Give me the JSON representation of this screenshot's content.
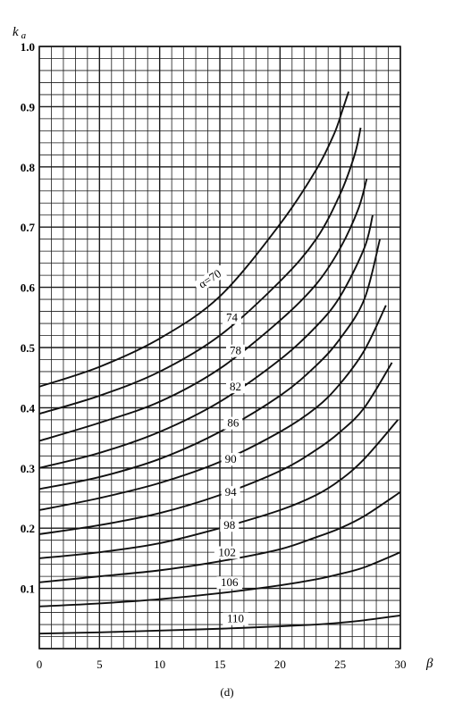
{
  "chart_data": {
    "type": "line",
    "title": "",
    "ylabel": {
      "symbol": "k",
      "subscript": "a"
    },
    "xlabel": "β",
    "caption": "(d)",
    "xlim": [
      0,
      30
    ],
    "ylim": [
      0,
      1.0
    ],
    "x_ticks": [
      "0",
      "5",
      "10",
      "15",
      "20",
      "25",
      "30"
    ],
    "y_ticks": [
      "0.1",
      "0.2",
      "0.3",
      "0.4",
      "0.5",
      "0.6",
      "0.7",
      "0.8",
      "0.9",
      "1.0"
    ],
    "grid": true,
    "line_color": "#111111",
    "grid_color": "#1a1a1a",
    "series": [
      {
        "name": "α=70",
        "label_x": 14.3,
        "label_y": 0.61,
        "label_angle": -33,
        "x": [
          0,
          5,
          10,
          15,
          20,
          23,
          24.5,
          25.2,
          25.7
        ],
        "y": [
          0.435,
          0.468,
          0.515,
          0.585,
          0.705,
          0.795,
          0.855,
          0.895,
          0.925
        ]
      },
      {
        "name": "74",
        "label_x": 16.0,
        "label_y": 0.545,
        "label_angle": 0,
        "x": [
          0,
          5,
          10,
          15,
          20,
          23,
          25,
          26.2,
          26.7
        ],
        "y": [
          0.39,
          0.42,
          0.46,
          0.52,
          0.61,
          0.68,
          0.755,
          0.82,
          0.865
        ]
      },
      {
        "name": "78",
        "label_x": 16.3,
        "label_y": 0.49,
        "label_angle": 0,
        "x": [
          0,
          5,
          10,
          15,
          20,
          23,
          25,
          26.5,
          27.2
        ],
        "y": [
          0.345,
          0.375,
          0.41,
          0.465,
          0.545,
          0.605,
          0.665,
          0.73,
          0.78
        ]
      },
      {
        "name": "82",
        "label_x": 16.3,
        "label_y": 0.43,
        "label_angle": 0,
        "x": [
          0,
          5,
          10,
          15,
          20,
          23,
          25,
          27,
          27.7
        ],
        "y": [
          0.3,
          0.325,
          0.36,
          0.41,
          0.48,
          0.535,
          0.585,
          0.665,
          0.72
        ]
      },
      {
        "name": "86",
        "label_x": 16.1,
        "label_y": 0.37,
        "label_angle": 0,
        "x": [
          0,
          5,
          10,
          15,
          20,
          23,
          25,
          27,
          28.3
        ],
        "y": [
          0.265,
          0.285,
          0.315,
          0.36,
          0.42,
          0.47,
          0.515,
          0.58,
          0.68
        ]
      },
      {
        "name": "90",
        "label_x": 15.9,
        "label_y": 0.31,
        "label_angle": 0,
        "x": [
          0,
          5,
          10,
          15,
          20,
          23,
          25,
          27,
          28.8
        ],
        "y": [
          0.23,
          0.25,
          0.275,
          0.31,
          0.36,
          0.4,
          0.44,
          0.495,
          0.57
        ]
      },
      {
        "name": "94",
        "label_x": 15.9,
        "label_y": 0.255,
        "label_angle": 0,
        "x": [
          0,
          5,
          10,
          15,
          20,
          23,
          25,
          27,
          29.3
        ],
        "y": [
          0.19,
          0.205,
          0.225,
          0.255,
          0.295,
          0.33,
          0.36,
          0.4,
          0.475
        ]
      },
      {
        "name": "98",
        "label_x": 15.8,
        "label_y": 0.2,
        "label_angle": 0,
        "x": [
          0,
          5,
          10,
          15,
          20,
          23,
          25,
          27,
          29.8
        ],
        "y": [
          0.15,
          0.16,
          0.175,
          0.2,
          0.23,
          0.255,
          0.28,
          0.315,
          0.38
        ]
      },
      {
        "name": "102",
        "label_x": 15.6,
        "label_y": 0.155,
        "label_angle": 0,
        "x": [
          0,
          5,
          10,
          15,
          20,
          23,
          25,
          27,
          30
        ],
        "y": [
          0.11,
          0.12,
          0.13,
          0.145,
          0.165,
          0.185,
          0.2,
          0.22,
          0.26
        ]
      },
      {
        "name": "106",
        "label_x": 15.8,
        "label_y": 0.105,
        "label_angle": 0,
        "x": [
          0,
          5,
          10,
          15,
          20,
          23,
          25,
          27,
          30
        ],
        "y": [
          0.07,
          0.075,
          0.082,
          0.092,
          0.105,
          0.115,
          0.124,
          0.135,
          0.16
        ]
      },
      {
        "name": "110",
        "label_x": 16.3,
        "label_y": 0.045,
        "label_angle": 0,
        "x": [
          0,
          5,
          10,
          15,
          20,
          23,
          25,
          27,
          30
        ],
        "y": [
          0.025,
          0.027,
          0.03,
          0.033,
          0.037,
          0.04,
          0.043,
          0.047,
          0.055
        ]
      }
    ]
  }
}
